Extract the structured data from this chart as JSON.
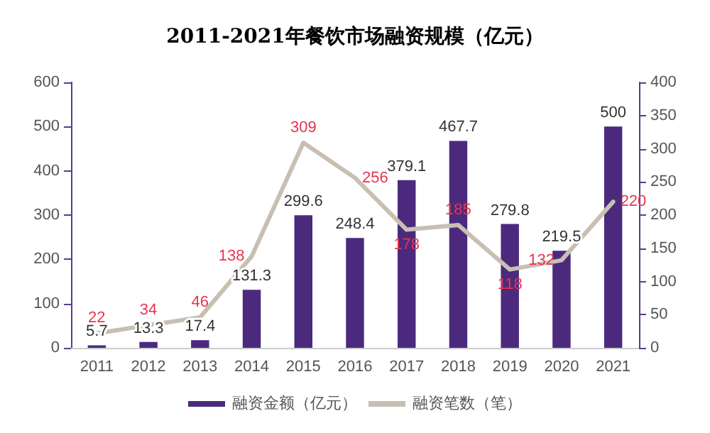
{
  "chart_data": {
    "type": "bar",
    "title": "2011-2021年餐饮市场融资规模（亿元）",
    "categories": [
      "2011",
      "2012",
      "2013",
      "2014",
      "2015",
      "2016",
      "2017",
      "2018",
      "2019",
      "2020",
      "2021"
    ],
    "series": [
      {
        "name": "融资金额（亿元）",
        "color": "#4b2a7e",
        "values": [
          5.7,
          13.3,
          17.4,
          131.3,
          299.6,
          248.4,
          379.1,
          467.7,
          279.8,
          219.5,
          500
        ]
      },
      {
        "name": "融资笔数（笔）",
        "type": "line",
        "axis": "y2",
        "color": "#c8bfb2",
        "values": [
          22,
          34,
          46,
          138,
          309,
          256,
          178,
          185,
          118,
          132,
          220
        ]
      }
    ],
    "ylim": [
      0,
      600
    ],
    "yticks": [
      0,
      100,
      200,
      300,
      400,
      500,
      600
    ],
    "y2lim": [
      0,
      400
    ],
    "y2ticks": [
      0,
      50,
      100,
      150,
      200,
      250,
      300,
      350,
      400
    ],
    "data_labels": true,
    "grid": false,
    "legend": "bottom",
    "marker": "none",
    "line_style": "solid"
  }
}
